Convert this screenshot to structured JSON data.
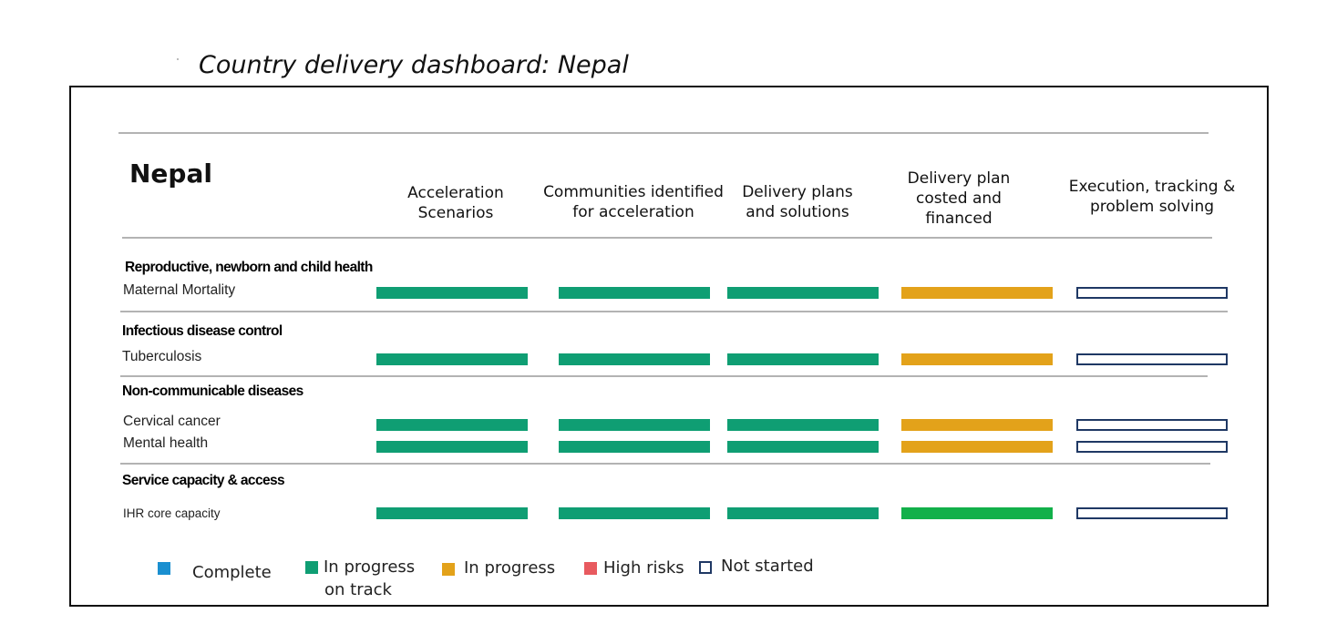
{
  "page_title": "Country delivery dashboard: Nepal",
  "country": "Nepal",
  "columns": [
    "Acceleration Scenarios",
    "Communities identified for acceleration",
    "Delivery plans and solutions",
    "Delivery plan costed and financed",
    "Execution, tracking & problem solving"
  ],
  "status_colors": {
    "complete": "#1a8fd0",
    "in_progress_on_track": "#0f9e73",
    "in_progress": "#e3a21a",
    "high_risks": "#e85a5f",
    "not_started": "#ffffff",
    "not_started_border": "#1f3864",
    "bright_green": "#12b04a"
  },
  "chart_data": {
    "type": "table",
    "columns": [
      "Acceleration Scenarios",
      "Communities identified for acceleration",
      "Delivery plans and solutions",
      "Delivery plan costed and financed",
      "Execution, tracking & problem solving"
    ],
    "groups": [
      {
        "category": "Reproductive, newborn and child health",
        "rows": [
          {
            "label": "Maternal Mortality",
            "statuses": [
              "in_progress_on_track",
              "in_progress_on_track",
              "in_progress_on_track",
              "in_progress",
              "not_started"
            ]
          }
        ]
      },
      {
        "category": "Infectious disease control",
        "rows": [
          {
            "label": "Tuberculosis",
            "statuses": [
              "in_progress_on_track",
              "in_progress_on_track",
              "in_progress_on_track",
              "in_progress",
              "not_started"
            ]
          }
        ]
      },
      {
        "category": "Non-communicable diseases",
        "rows": [
          {
            "label": "Cervical cancer",
            "statuses": [
              "in_progress_on_track",
              "in_progress_on_track",
              "in_progress_on_track",
              "in_progress",
              "not_started"
            ]
          },
          {
            "label": "Mental health",
            "statuses": [
              "in_progress_on_track",
              "in_progress_on_track",
              "in_progress_on_track",
              "in_progress",
              "not_started"
            ]
          }
        ]
      },
      {
        "category": "Service capacity & access",
        "rows": [
          {
            "label": "IHR core capacity",
            "statuses": [
              "in_progress_on_track",
              "in_progress_on_track",
              "in_progress_on_track",
              "bright_green",
              "not_started"
            ]
          }
        ]
      }
    ],
    "legend": [
      {
        "key": "complete",
        "label": "Complete"
      },
      {
        "key": "in_progress_on_track",
        "label": "In progress on track"
      },
      {
        "key": "in_progress",
        "label": "In progress"
      },
      {
        "key": "high_risks",
        "label": "High risks"
      },
      {
        "key": "not_started",
        "label": "Not started"
      }
    ]
  },
  "legend": {
    "complete": "Complete",
    "on_track_line1": "In progress",
    "on_track_line2": "on track",
    "in_progress": "In progress",
    "high_risks": "High risks",
    "not_started": "Not started"
  }
}
